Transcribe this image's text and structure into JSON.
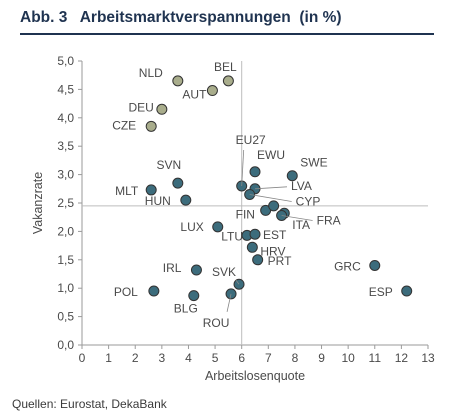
{
  "figure": {
    "number": "Abb. 3",
    "title": "Arbeitsmarktverspannungen  (in %)",
    "source": "Quellen: Eurostat, DekaBank"
  },
  "colors": {
    "title": "#1f3350",
    "group_a_fill": "#a9ad8c",
    "group_b_fill": "#3c6c7c",
    "marker_stroke": "#333333",
    "reference_lines": "#bdbdbd",
    "axis": "#9a9a9a"
  },
  "chart_data": {
    "type": "scatter",
    "title": "Arbeitsmarktverspannungen  (in %)",
    "xlabel": "Arbeitslosenquote",
    "ylabel": "Vakanzrate",
    "xlim": [
      0,
      13
    ],
    "ylim": [
      0.0,
      5.0
    ],
    "xticks": [
      "0",
      "1",
      "2",
      "3",
      "4",
      "5",
      "6",
      "7",
      "8",
      "9",
      "10",
      "11",
      "12",
      "13"
    ],
    "yticks": [
      "0,0",
      "0,5",
      "1,0",
      "1,5",
      "2,0",
      "2,5",
      "3,0",
      "3,5",
      "4,0",
      "4,5",
      "5,0"
    ],
    "grid": false,
    "reference_lines": {
      "x": 6.0,
      "y": 2.45
    },
    "series": [
      {
        "group": "a",
        "points": [
          {
            "label": "NLD",
            "x": 3.6,
            "y": 4.65
          },
          {
            "label": "BEL",
            "x": 5.5,
            "y": 4.65
          },
          {
            "label": "AUT",
            "x": 4.9,
            "y": 4.48
          },
          {
            "label": "DEU",
            "x": 3.0,
            "y": 4.15
          },
          {
            "label": "CZE",
            "x": 2.6,
            "y": 3.85
          }
        ]
      },
      {
        "group": "b",
        "points": [
          {
            "label": "SVN",
            "x": 3.6,
            "y": 2.85
          },
          {
            "label": "MLT",
            "x": 2.6,
            "y": 2.73
          },
          {
            "label": "HUN",
            "x": 3.9,
            "y": 2.55
          },
          {
            "label": "EU27",
            "x": 6.0,
            "y": 2.8
          },
          {
            "label": "EWU",
            "x": 6.5,
            "y": 3.05
          },
          {
            "label": "SWE",
            "x": 7.9,
            "y": 2.98
          },
          {
            "label": "LVA",
            "x": 6.5,
            "y": 2.75
          },
          {
            "label": "CYP",
            "x": 6.3,
            "y": 2.65
          },
          {
            "label": "FIN",
            "x": 6.9,
            "y": 2.37
          },
          {
            "label": "",
            "x": 7.2,
            "y": 2.45
          },
          {
            "label": "ITA",
            "x": 7.6,
            "y": 2.32
          },
          {
            "label": "FRA",
            "x": 7.5,
            "y": 2.28
          },
          {
            "label": "LUX",
            "x": 5.1,
            "y": 2.08
          },
          {
            "label": "LTU",
            "x": 6.2,
            "y": 1.93
          },
          {
            "label": "EST",
            "x": 6.5,
            "y": 1.95
          },
          {
            "label": "HRV",
            "x": 6.4,
            "y": 1.72
          },
          {
            "label": "PRT",
            "x": 6.6,
            "y": 1.5
          },
          {
            "label": "GRC",
            "x": 11.0,
            "y": 1.4
          },
          {
            "label": "ESP",
            "x": 12.2,
            "y": 0.95
          },
          {
            "label": "IRL",
            "x": 4.3,
            "y": 1.32
          },
          {
            "label": "SVK",
            "x": 5.9,
            "y": 1.07
          },
          {
            "label": "POL",
            "x": 2.7,
            "y": 0.95
          },
          {
            "label": "BLG",
            "x": 4.2,
            "y": 0.87
          },
          {
            "label": "ROU",
            "x": 5.6,
            "y": 0.9
          }
        ]
      }
    ]
  }
}
